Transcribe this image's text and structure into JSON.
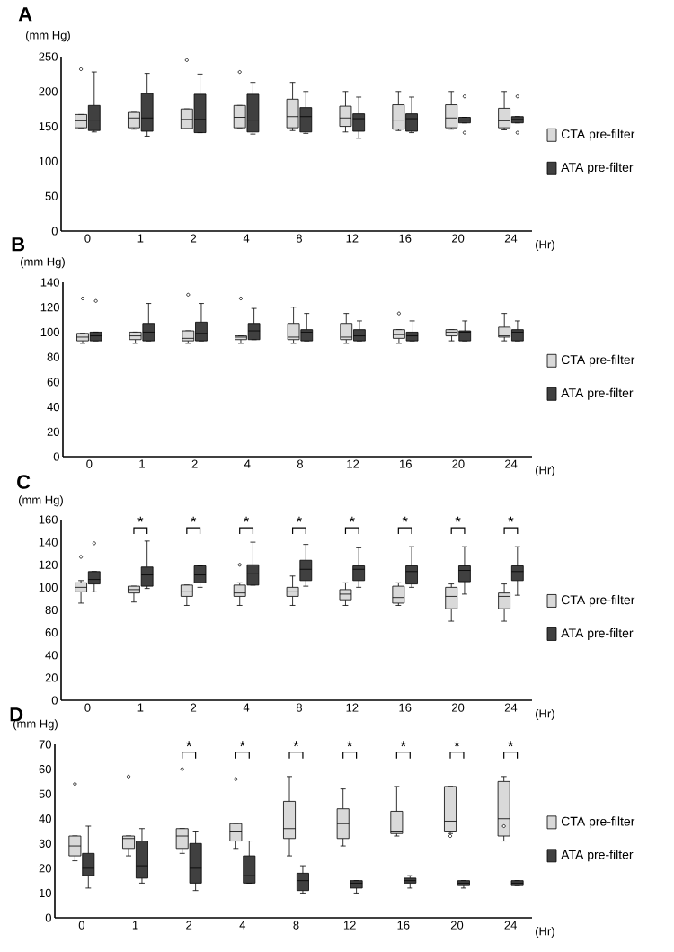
{
  "chart_data": [
    {
      "type": "box",
      "title": "A",
      "ylabel": "(mm Hg)",
      "xlabel": "(Hr)",
      "categories": [
        "0",
        "1",
        "2",
        "4",
        "8",
        "12",
        "16",
        "20",
        "24"
      ],
      "ylim": [
        0,
        250
      ],
      "yticks": [
        0,
        50,
        100,
        150,
        200,
        250
      ],
      "legend": "right",
      "series": [
        {
          "name": "CTA pre-filter",
          "color": "#d9d9d9",
          "boxes": [
            {
              "low": 148,
              "q1": 148,
              "median": 158,
              "q3": 167,
              "high": 167,
              "outliers": [
                232
              ]
            },
            {
              "low": 146,
              "q1": 148,
              "median": 162,
              "q3": 170,
              "high": 170
            },
            {
              "low": 147,
              "q1": 147,
              "median": 160,
              "q3": 175,
              "high": 175,
              "outliers": [
                245
              ]
            },
            {
              "low": 148,
              "q1": 148,
              "median": 163,
              "q3": 180,
              "high": 180,
              "outliers": [
                228
              ]
            },
            {
              "low": 144,
              "q1": 148,
              "median": 164,
              "q3": 189,
              "high": 213
            },
            {
              "low": 142,
              "q1": 150,
              "median": 162,
              "q3": 179,
              "high": 200
            },
            {
              "low": 144,
              "q1": 146,
              "median": 159,
              "q3": 181,
              "high": 200
            },
            {
              "low": 146,
              "q1": 148,
              "median": 162,
              "q3": 181,
              "high": 200
            },
            {
              "low": 145,
              "q1": 148,
              "median": 158,
              "q3": 176,
              "high": 200
            }
          ]
        },
        {
          "name": "ATA pre-filter",
          "color": "#404040",
          "boxes": [
            {
              "low": 142,
              "q1": 144,
              "median": 159,
              "q3": 180,
              "high": 228
            },
            {
              "low": 136,
              "q1": 143,
              "median": 162,
              "q3": 197,
              "high": 226
            },
            {
              "low": 141,
              "q1": 141,
              "median": 160,
              "q3": 196,
              "high": 225
            },
            {
              "low": 139,
              "q1": 142,
              "median": 159,
              "q3": 196,
              "high": 213
            },
            {
              "low": 140,
              "q1": 142,
              "median": 164,
              "q3": 177,
              "high": 200
            },
            {
              "low": 133,
              "q1": 143,
              "median": 161,
              "q3": 168,
              "high": 192
            },
            {
              "low": 141,
              "q1": 143,
              "median": 161,
              "q3": 168,
              "high": 192
            },
            {
              "low": 155,
              "q1": 155,
              "median": 159,
              "q3": 163,
              "high": 163,
              "outliers": [
                193,
                141
              ]
            },
            {
              "low": 155,
              "q1": 155,
              "median": 160,
              "q3": 164,
              "high": 164,
              "outliers": [
                193,
                141
              ]
            }
          ]
        }
      ]
    },
    {
      "type": "box",
      "title": "B",
      "ylabel": "(mm Hg)",
      "xlabel": "(Hr)",
      "categories": [
        "0",
        "1",
        "2",
        "4",
        "8",
        "12",
        "16",
        "20",
        "24"
      ],
      "ylim": [
        0,
        140
      ],
      "yticks": [
        0,
        20,
        40,
        60,
        80,
        100,
        120,
        140
      ],
      "legend": "right",
      "series": [
        {
          "name": "CTA pre-filter",
          "color": "#d9d9d9",
          "boxes": [
            {
              "low": 91,
              "q1": 93,
              "median": 96,
              "q3": 99,
              "high": 99,
              "outliers": [
                127
              ]
            },
            {
              "low": 91,
              "q1": 94,
              "median": 97,
              "q3": 100,
              "high": 100
            },
            {
              "low": 91,
              "q1": 93,
              "median": 95,
              "q3": 101,
              "high": 101,
              "outliers": [
                130
              ]
            },
            {
              "low": 91,
              "q1": 94,
              "median": 96,
              "q3": 97,
              "high": 97,
              "outliers": [
                127
              ]
            },
            {
              "low": 91,
              "q1": 94,
              "median": 96,
              "q3": 107,
              "high": 120
            },
            {
              "low": 91,
              "q1": 94,
              "median": 96,
              "q3": 107,
              "high": 115
            },
            {
              "low": 91,
              "q1": 95,
              "median": 98,
              "q3": 102,
              "high": 102,
              "outliers": [
                115
              ]
            },
            {
              "low": 93,
              "q1": 97,
              "median": 100,
              "q3": 102,
              "high": 102
            },
            {
              "low": 93,
              "q1": 96,
              "median": 97,
              "q3": 104,
              "high": 115
            }
          ]
        },
        {
          "name": "ATA pre-filter",
          "color": "#404040",
          "boxes": [
            {
              "low": 93,
              "q1": 93,
              "median": 97,
              "q3": 100,
              "high": 100,
              "outliers": [
                125
              ]
            },
            {
              "low": 93,
              "q1": 93,
              "median": 100,
              "q3": 107,
              "high": 123
            },
            {
              "low": 93,
              "q1": 93,
              "median": 99,
              "q3": 108,
              "high": 123
            },
            {
              "low": 94,
              "q1": 94,
              "median": 101,
              "q3": 107,
              "high": 119
            },
            {
              "low": 93,
              "q1": 93,
              "median": 100,
              "q3": 102,
              "high": 115
            },
            {
              "low": 93,
              "q1": 93,
              "median": 97,
              "q3": 102,
              "high": 109
            },
            {
              "low": 93,
              "q1": 93,
              "median": 97,
              "q3": 100,
              "high": 109
            },
            {
              "low": 93,
              "q1": 93,
              "median": 100,
              "q3": 101,
              "high": 109
            },
            {
              "low": 93,
              "q1": 93,
              "median": 100,
              "q3": 102,
              "high": 109
            }
          ]
        }
      ]
    },
    {
      "type": "box",
      "title": "C",
      "ylabel": "(mm Hg)",
      "xlabel": "(Hr)",
      "categories": [
        "0",
        "1",
        "2",
        "4",
        "8",
        "12",
        "16",
        "20",
        "24"
      ],
      "ylim": [
        0,
        160
      ],
      "yticks": [
        0,
        20,
        40,
        60,
        80,
        100,
        120,
        140,
        160
      ],
      "legend": "right",
      "annotations": [
        "*",
        "*",
        "*",
        "*",
        "*",
        "*",
        "*",
        "*"
      ],
      "series": [
        {
          "name": "CTA pre-filter",
          "color": "#d9d9d9",
          "boxes": [
            {
              "low": 86,
              "q1": 96,
              "median": 100,
              "q3": 104,
              "high": 106,
              "outliers": [
                127
              ]
            },
            {
              "low": 87,
              "q1": 95,
              "median": 98,
              "q3": 101,
              "high": 101
            },
            {
              "low": 84,
              "q1": 92,
              "median": 96,
              "q3": 102,
              "high": 102
            },
            {
              "low": 84,
              "q1": 92,
              "median": 95,
              "q3": 102,
              "high": 104,
              "outliers": [
                120
              ]
            },
            {
              "low": 84,
              "q1": 92,
              "median": 96,
              "q3": 100,
              "high": 110
            },
            {
              "low": 84,
              "q1": 89,
              "median": 94,
              "q3": 98,
              "high": 104
            },
            {
              "low": 84,
              "q1": 86,
              "median": 91,
              "q3": 101,
              "high": 104
            },
            {
              "low": 70,
              "q1": 81,
              "median": 92,
              "q3": 100,
              "high": 103
            },
            {
              "low": 70,
              "q1": 81,
              "median": 92,
              "q3": 95,
              "high": 103
            }
          ]
        },
        {
          "name": "ATA pre-filter",
          "color": "#404040",
          "boxes": [
            {
              "low": 96,
              "q1": 103,
              "median": 107,
              "q3": 114,
              "high": 114,
              "outliers": [
                139
              ]
            },
            {
              "low": 99,
              "q1": 101,
              "median": 111,
              "q3": 118,
              "high": 141
            },
            {
              "low": 100,
              "q1": 104,
              "median": 111,
              "q3": 119,
              "high": 119
            },
            {
              "low": 102,
              "q1": 102,
              "median": 112,
              "q3": 120,
              "high": 140
            },
            {
              "low": 101,
              "q1": 106,
              "median": 116,
              "q3": 124,
              "high": 138
            },
            {
              "low": 100,
              "q1": 106,
              "median": 116,
              "q3": 119,
              "high": 135
            },
            {
              "low": 100,
              "q1": 103,
              "median": 114,
              "q3": 119,
              "high": 136
            },
            {
              "low": 94,
              "q1": 105,
              "median": 115,
              "q3": 119,
              "high": 136
            },
            {
              "low": 93,
              "q1": 106,
              "median": 114,
              "q3": 119,
              "high": 136
            }
          ]
        }
      ]
    },
    {
      "type": "box",
      "title": "D",
      "ylabel": "(mm Hg)",
      "xlabel": "(Hr)",
      "categories": [
        "0",
        "1",
        "2",
        "4",
        "8",
        "12",
        "16",
        "20",
        "24"
      ],
      "ylim": [
        0,
        70
      ],
      "yticks": [
        0,
        10,
        20,
        30,
        40,
        50,
        60,
        70
      ],
      "legend": "right",
      "annotations": [
        "*",
        "*",
        "*",
        "*",
        "*",
        "*",
        "*"
      ],
      "series": [
        {
          "name": "CTA pre-filter",
          "color": "#d9d9d9",
          "boxes": [
            {
              "low": 23,
              "q1": 25,
              "median": 29,
              "q3": 33,
              "high": 33,
              "outliers": [
                54
              ]
            },
            {
              "low": 25,
              "q1": 28,
              "median": 32,
              "q3": 33,
              "high": 33,
              "outliers": [
                57
              ]
            },
            {
              "low": 26,
              "q1": 28,
              "median": 33,
              "q3": 36,
              "high": 36,
              "outliers": [
                60
              ]
            },
            {
              "low": 28,
              "q1": 31,
              "median": 35,
              "q3": 38,
              "high": 38,
              "outliers": [
                56
              ]
            },
            {
              "low": 25,
              "q1": 32,
              "median": 36,
              "q3": 47,
              "high": 57
            },
            {
              "low": 29,
              "q1": 32,
              "median": 38,
              "q3": 44,
              "high": 52
            },
            {
              "low": 33,
              "q1": 34,
              "median": 35,
              "q3": 43,
              "high": 53
            },
            {
              "low": 34,
              "q1": 35,
              "median": 39,
              "q3": 53,
              "high": 53,
              "outliers": [
                33
              ]
            },
            {
              "low": 31,
              "q1": 33,
              "median": 40,
              "q3": 55,
              "high": 57,
              "outliers": [
                37
              ]
            }
          ]
        },
        {
          "name": "ATA pre-filter",
          "color": "#404040",
          "boxes": [
            {
              "low": 12,
              "q1": 17,
              "median": 20,
              "q3": 26,
              "high": 37
            },
            {
              "low": 14,
              "q1": 16,
              "median": 21,
              "q3": 31,
              "high": 36
            },
            {
              "low": 11,
              "q1": 14,
              "median": 20,
              "q3": 30,
              "high": 35
            },
            {
              "low": 14,
              "q1": 14,
              "median": 17,
              "q3": 25,
              "high": 31
            },
            {
              "low": 10,
              "q1": 11,
              "median": 15,
              "q3": 18,
              "high": 21
            },
            {
              "low": 10,
              "q1": 12,
              "median": 14,
              "q3": 15,
              "high": 15
            },
            {
              "low": 12,
              "q1": 14,
              "median": 15,
              "q3": 16,
              "high": 17
            },
            {
              "low": 12,
              "q1": 13,
              "median": 14,
              "q3": 15,
              "high": 15
            },
            {
              "low": 13,
              "q1": 13,
              "median": 14,
              "q3": 15,
              "high": 15
            }
          ]
        }
      ]
    }
  ]
}
